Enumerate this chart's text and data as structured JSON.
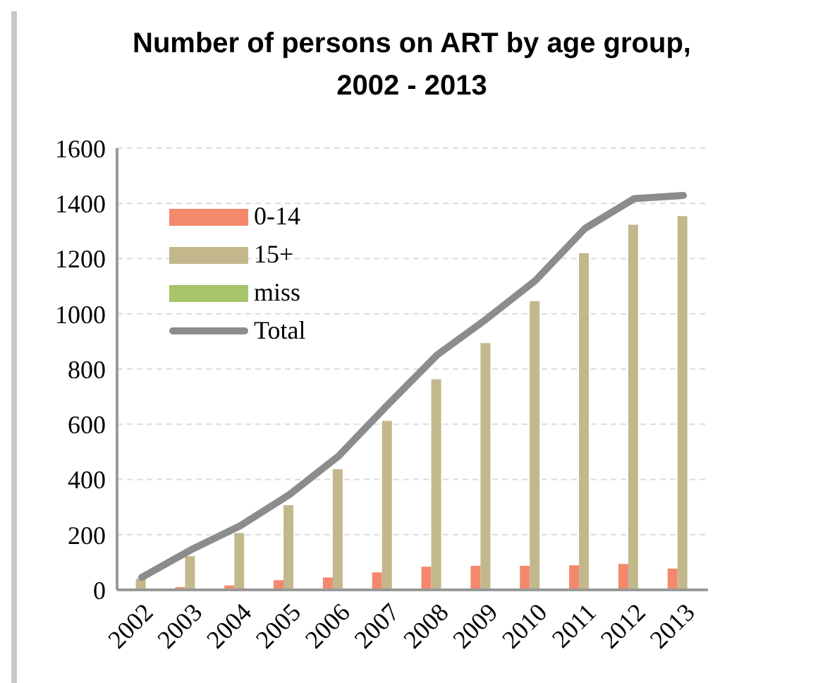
{
  "chart_data": {
    "type": "bar",
    "title": "Number of persons on ART by age group, 2002 - 2013",
    "categories": [
      "2002",
      "2003",
      "2004",
      "2005",
      "2006",
      "2007",
      "2008",
      "2009",
      "2010",
      "2011",
      "2012",
      "2013"
    ],
    "series": [
      {
        "name": "0-14",
        "color": "#f4886c",
        "values": [
          0,
          10,
          16,
          35,
          45,
          63,
          84,
          87,
          87,
          89,
          94,
          77
        ]
      },
      {
        "name": "15+",
        "color": "#c2b88c",
        "values": [
          40,
          122,
          206,
          307,
          437,
          612,
          763,
          894,
          1046,
          1220,
          1323,
          1354
        ]
      },
      {
        "name": "miss",
        "color": "#a6c46a",
        "values": [
          0,
          0,
          0,
          0,
          0,
          0,
          0,
          0,
          0,
          0,
          0,
          0
        ]
      },
      {
        "name": "Total",
        "type": "line",
        "color": "#8c8c8c",
        "marker": "none",
        "values": [
          45,
          145,
          232,
          345,
          485,
          671,
          851,
          981,
          1121,
          1309,
          1417,
          1429
        ]
      }
    ],
    "ylim": [
      0,
      1600
    ],
    "yticks": [
      0,
      200,
      400,
      600,
      800,
      1000,
      1200,
      1400,
      1600
    ],
    "grid": "y",
    "legend": "top left"
  }
}
